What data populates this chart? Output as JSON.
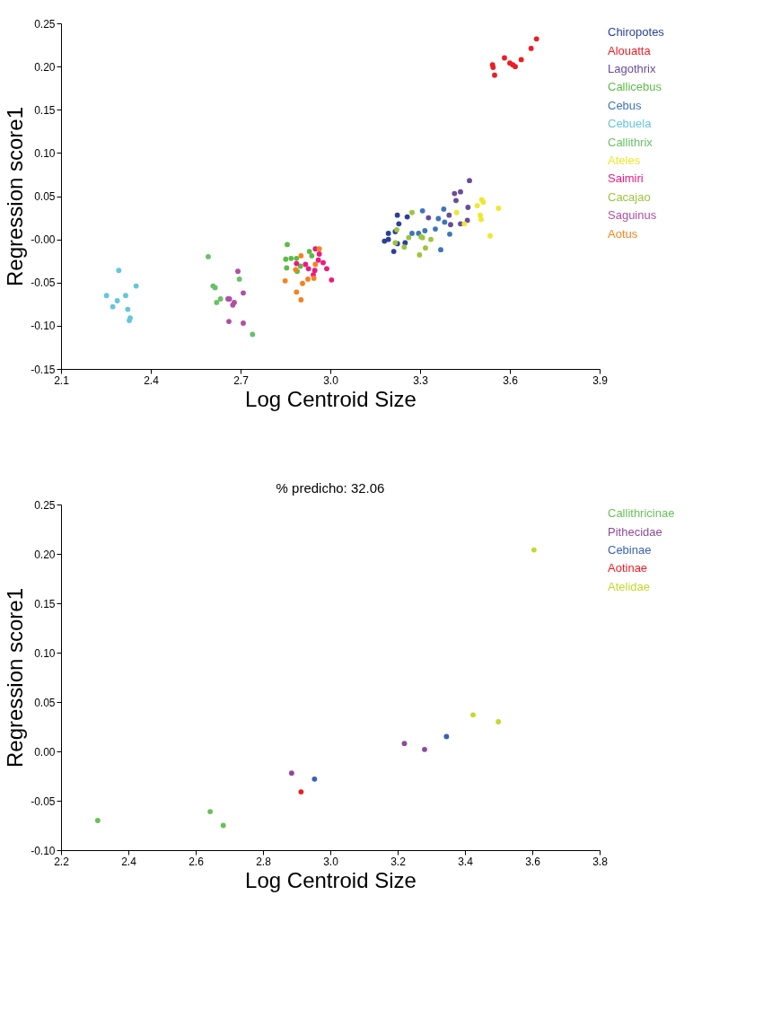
{
  "chart_data": [
    {
      "type": "scatter",
      "xlabel": "Log Centroid Size",
      "ylabel": "Regression score1",
      "xlim": [
        2.1,
        3.9
      ],
      "ylim": [
        -0.15,
        0.25
      ],
      "xticks": [
        2.1,
        2.4,
        2.7,
        {
          "value": 3.0,
          "label": "3.0"
        },
        3.3,
        3.6,
        3.9
      ],
      "yticks": [
        {
          "value": -0.15,
          "label": "-0.15"
        },
        {
          "value": -0.1,
          "label": "-0.10"
        },
        {
          "value": -0.05,
          "label": "-0.05"
        },
        {
          "value": 0,
          "label": "-0.00"
        },
        {
          "value": 0.05,
          "label": "0.05"
        },
        {
          "value": 0.1,
          "label": "0.10"
        },
        {
          "value": 0.15,
          "label": "0.15"
        },
        {
          "value": 0.2,
          "label": "0.20"
        },
        {
          "value": 0.25,
          "label": "0.25"
        }
      ],
      "grid": false,
      "marker": "circle",
      "series": [
        {
          "name": "Chiropotes",
          "color": "#2b3f99",
          "x": [
            3.224,
            3.257,
            3.229,
            3.194,
            3.217,
            3.194,
            3.181,
            3.224,
            3.25,
            3.212
          ],
          "values": [
            0.028,
            0.026,
            0.018,
            0.007,
            0.009,
            0.0,
            -0.002,
            -0.005,
            -0.004,
            -0.014
          ]
        },
        {
          "name": "Alouatta",
          "color": "#ee1c24",
          "x": [
            3.689,
            3.671,
            3.582,
            3.638,
            3.542,
            3.6,
            3.618,
            3.61,
            3.549,
            3.544
          ],
          "values": [
            0.232,
            0.221,
            0.21,
            0.208,
            0.202,
            0.204,
            0.2,
            0.202,
            0.19,
            0.199
          ]
        },
        {
          "name": "Lagothrix",
          "color": "#6a4c9c",
          "x": [
            3.465,
            3.415,
            3.435,
            3.42,
            3.46,
            3.328,
            3.397,
            3.402,
            3.435,
            3.458
          ],
          "values": [
            0.068,
            0.053,
            0.055,
            0.045,
            0.037,
            0.025,
            0.028,
            0.017,
            0.018,
            0.022
          ]
        },
        {
          "name": "Callicebus",
          "color": "#5dbb46",
          "x": [
            2.856,
            2.851,
            2.869,
            2.887,
            2.854,
            2.93,
            2.938,
            2.9,
            2.889
          ],
          "values": [
            -0.006,
            -0.023,
            -0.022,
            -0.022,
            -0.033,
            -0.014,
            -0.019,
            -0.031,
            -0.037
          ]
        },
        {
          "name": "Cebus",
          "color": "#3e75b8",
          "x": [
            3.308,
            3.379,
            3.382,
            3.361,
            3.316,
            3.351,
            3.273,
            3.295,
            3.399,
            3.369
          ],
          "values": [
            0.033,
            0.035,
            0.02,
            0.024,
            0.01,
            0.012,
            0.007,
            0.007,
            0.006,
            -0.012
          ]
        },
        {
          "name": "Cebuela",
          "color": "#66c6d9",
          "x": [
            2.293,
            2.351,
            2.252,
            2.316,
            2.288,
            2.273,
            2.323,
            2.331,
            2.328
          ],
          "values": [
            -0.036,
            -0.054,
            -0.065,
            -0.065,
            -0.071,
            -0.078,
            -0.081,
            -0.091,
            -0.094
          ]
        },
        {
          "name": "Callithrix",
          "color": "#6abf6a",
          "x": [
            2.592,
            2.696,
            2.608,
            2.615,
            2.633,
            2.62,
            2.74
          ],
          "values": [
            -0.02,
            -0.046,
            -0.054,
            -0.056,
            -0.069,
            -0.073,
            -0.11
          ]
        },
        {
          "name": "Ateles",
          "color": "#eee82e",
          "x": [
            3.506,
            3.511,
            3.491,
            3.562,
            3.422,
            3.501,
            3.504,
            3.448,
            3.534
          ],
          "values": [
            0.046,
            0.043,
            0.039,
            0.036,
            0.031,
            0.028,
            0.023,
            0.018,
            0.004
          ]
        },
        {
          "name": "Saimiri",
          "color": "#ec1a7d",
          "x": [
            2.95,
            2.963,
            2.887,
            2.917,
            2.96,
            2.976,
            2.927,
            2.988,
            2.948,
            2.943,
            3.004
          ],
          "values": [
            -0.011,
            -0.017,
            -0.028,
            -0.029,
            -0.024,
            -0.027,
            -0.034,
            -0.034,
            -0.036,
            -0.041,
            -0.047
          ]
        },
        {
          "name": "Cacajao",
          "color": "#9bc53d",
          "x": [
            3.273,
            3.222,
            3.262,
            3.303,
            3.308,
            3.336,
            3.247,
            3.318,
            3.298,
            3.217
          ],
          "values": [
            0.031,
            0.011,
            0.002,
            0.003,
            0.002,
            0.0,
            -0.009,
            -0.01,
            -0.018,
            -0.004
          ]
        },
        {
          "name": "Saguinus",
          "color": "#b04fa4",
          "x": [
            2.691,
            2.709,
            2.658,
            2.663,
            2.679,
            2.674,
            2.661,
            2.709
          ],
          "values": [
            -0.037,
            -0.062,
            -0.069,
            -0.069,
            -0.073,
            -0.076,
            -0.095,
            -0.097
          ]
        },
        {
          "name": "Aotus",
          "color": "#f5821f",
          "x": [
            2.902,
            2.963,
            2.884,
            2.849,
            2.95,
            2.945,
            2.925,
            2.907,
            2.887,
            2.902
          ],
          "values": [
            -0.019,
            -0.011,
            -0.035,
            -0.048,
            -0.029,
            -0.045,
            -0.046,
            -0.051,
            -0.061,
            -0.07
          ]
        }
      ]
    },
    {
      "type": "scatter",
      "title": "% predicho: 32.06",
      "xlabel": "Log Centroid Size",
      "ylabel": "Regression score1",
      "xlim": [
        2.2,
        3.8
      ],
      "ylim": [
        -0.1,
        0.25
      ],
      "xticks": [
        2.2,
        2.4,
        2.6,
        2.8,
        {
          "value": 3.0,
          "label": "3.0"
        },
        3.2,
        3.4,
        3.6,
        3.8
      ],
      "yticks": [
        {
          "value": -0.1,
          "label": "-0.10"
        },
        {
          "value": -0.05,
          "label": "-0.05"
        },
        {
          "value": 0,
          "label": "0.00"
        },
        {
          "value": 0.05,
          "label": "0.05"
        },
        {
          "value": 0.1,
          "label": "0.10"
        },
        {
          "value": 0.15,
          "label": "0.15"
        },
        {
          "value": 0.2,
          "label": "0.20"
        },
        {
          "value": 0.25,
          "label": "0.25"
        }
      ],
      "grid": false,
      "marker": "circle",
      "series": [
        {
          "name": "Callithricinae",
          "color": "#6abf58",
          "x": [
            2.309,
            2.643,
            2.682
          ],
          "values": [
            -0.07,
            -0.061,
            -0.075
          ]
        },
        {
          "name": "Pithecidae",
          "color": "#8e4a9c",
          "x": [
            2.885,
            3.22,
            3.28
          ],
          "values": [
            -0.022,
            0.008,
            0.002
          ]
        },
        {
          "name": "Cebinae",
          "color": "#3a62b0",
          "x": [
            2.953,
            3.345
          ],
          "values": [
            -0.028,
            0.015
          ]
        },
        {
          "name": "Aotinae",
          "color": "#ee1c24",
          "x": [
            2.913
          ],
          "values": [
            -0.041
          ]
        },
        {
          "name": "Atelidae",
          "color": "#c6d72e",
          "x": [
            3.424,
            3.499,
            3.605
          ],
          "values": [
            0.037,
            0.03,
            0.204
          ]
        }
      ]
    }
  ]
}
